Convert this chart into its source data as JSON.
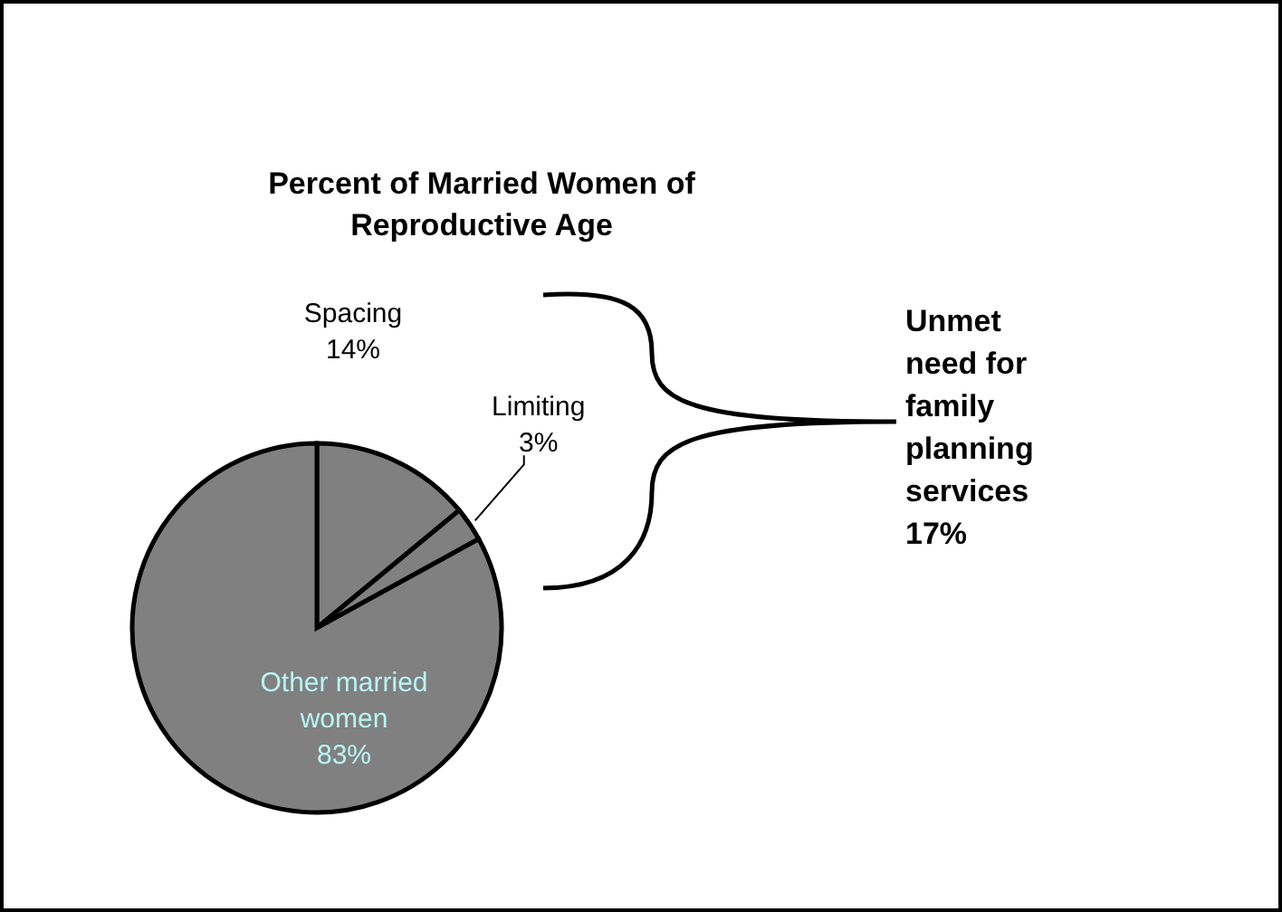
{
  "chart_data": {
    "type": "pie",
    "title": "Percent of Married Women of Reproductive Age",
    "categories": [
      "Spacing",
      "Limiting",
      "Other married women"
    ],
    "values": [
      14,
      3,
      83
    ],
    "value_labels": [
      "14%",
      "3%",
      "83%"
    ],
    "colors": [
      "#808080",
      "#808080",
      "#808080"
    ],
    "annotations": [
      "Unmet need for family planning services 17%"
    ]
  }
}
